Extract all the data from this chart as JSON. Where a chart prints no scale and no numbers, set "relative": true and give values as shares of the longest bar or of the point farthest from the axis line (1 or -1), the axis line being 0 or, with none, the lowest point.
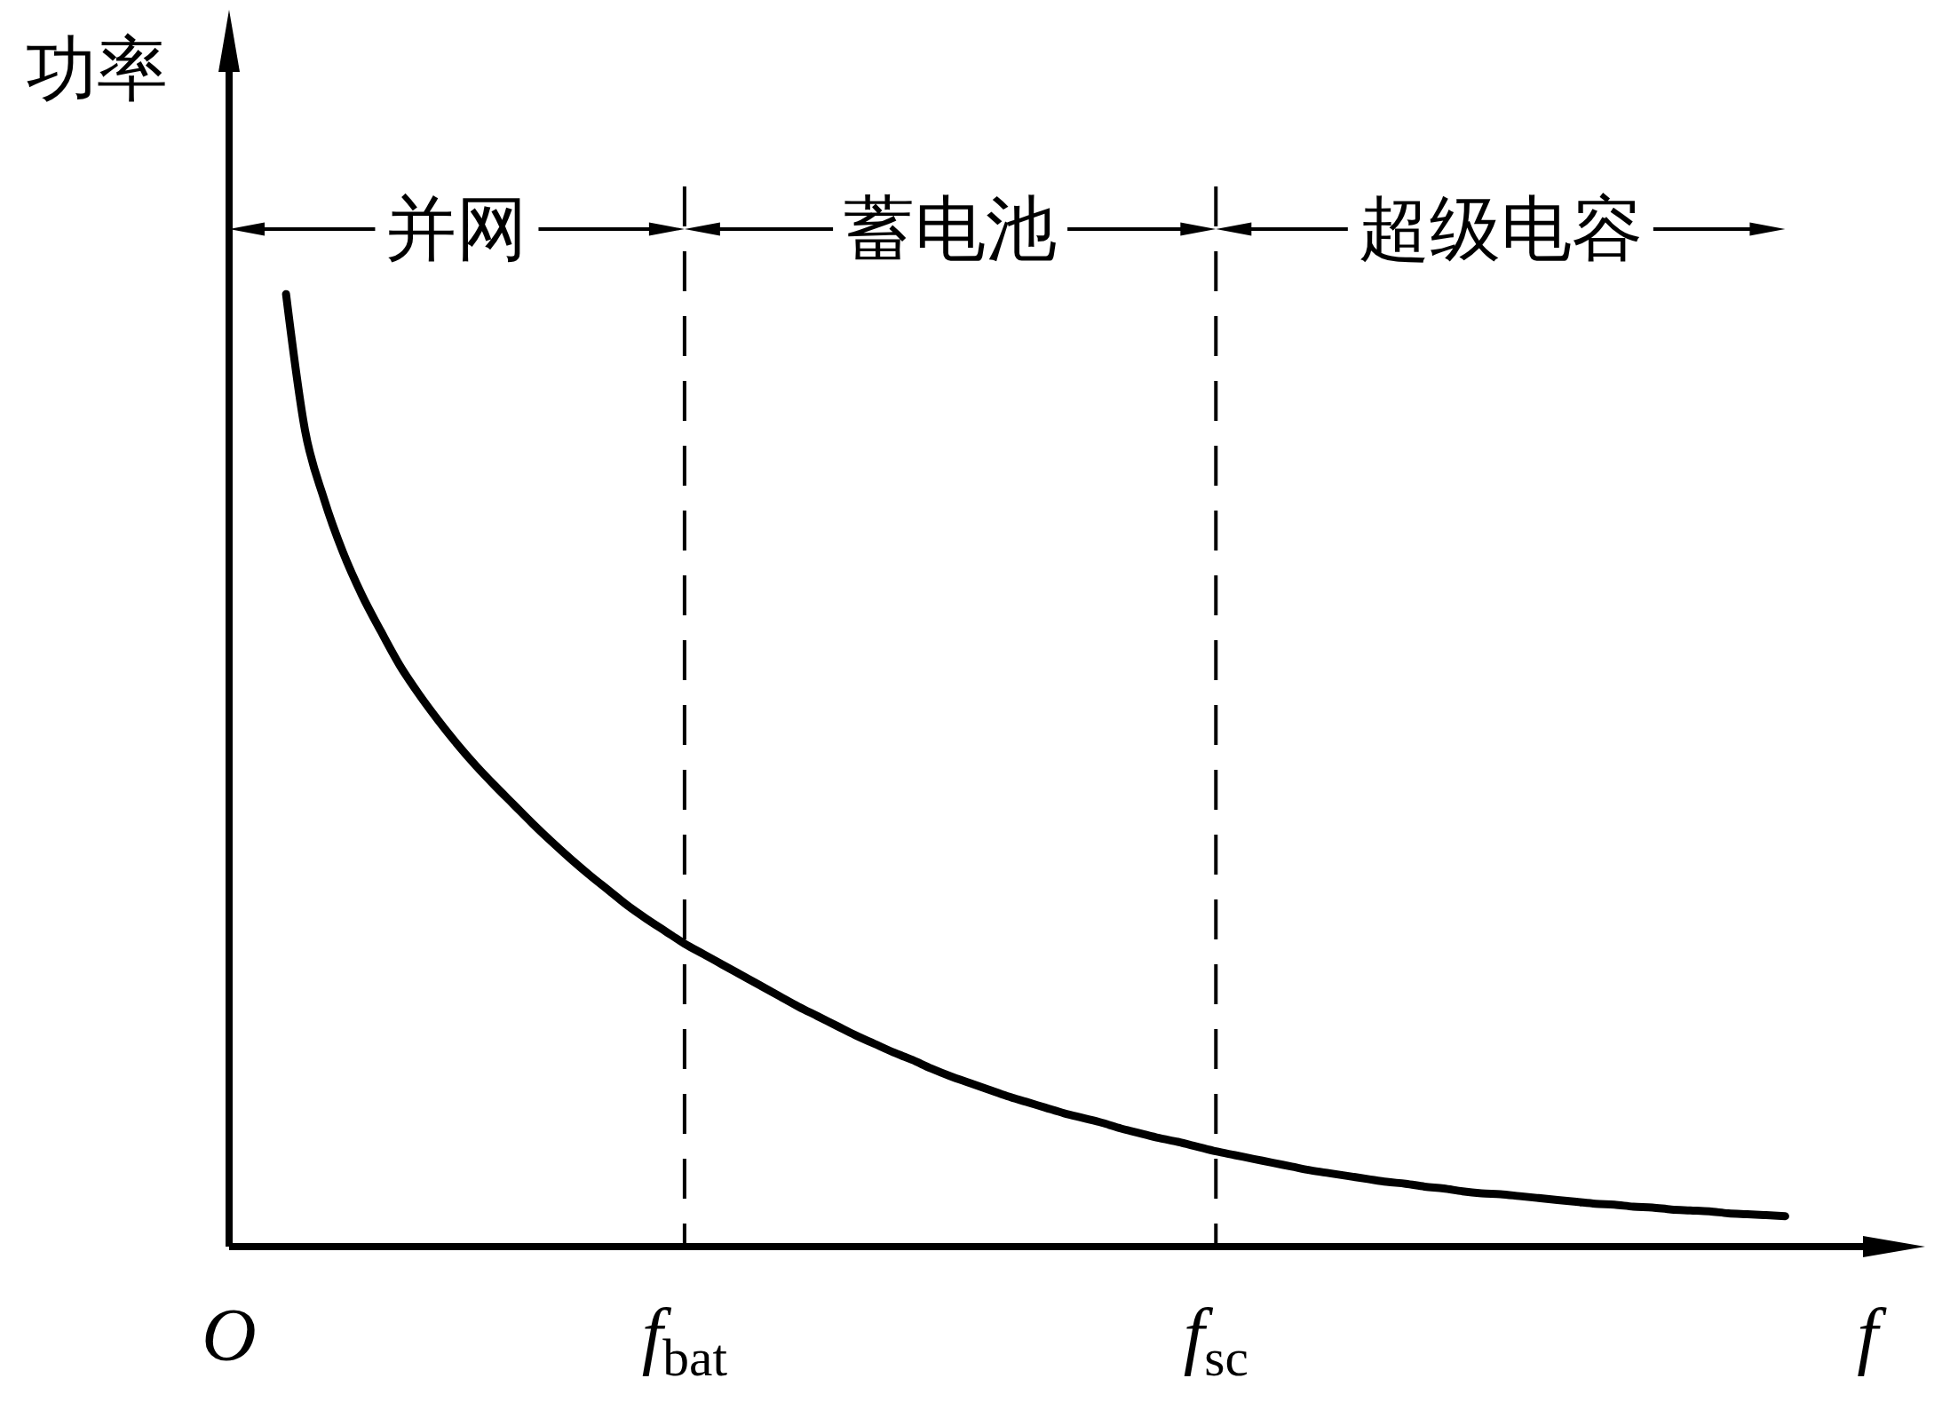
{
  "chart_data": {
    "type": "line",
    "ylabel": "功率",
    "xlabel": "f",
    "relative": true,
    "categories": [
      "O",
      null,
      null,
      null,
      null,
      null,
      null,
      null,
      null,
      null,
      null,
      null,
      null,
      null,
      null,
      null,
      null,
      null,
      null,
      null,
      null,
      null,
      null,
      null,
      "f$_{bat}$",
      null,
      null,
      null,
      null,
      null,
      null,
      null,
      null,
      null,
      null,
      null,
      null,
      null,
      null,
      null,
      null,
      null,
      null,
      null,
      null,
      null,
      null,
      null,
      null,
      null,
      null,
      null,
      "f$_{sc}$",
      null,
      null,
      null,
      null,
      null,
      null,
      null,
      null,
      null,
      null,
      null,
      null,
      null,
      null,
      null,
      null,
      null,
      null,
      null,
      null,
      null,
      null,
      null,
      null,
      null,
      null,
      null,
      null,
      null,
      null
    ],
    "values": [
      null,
      null,
      null,
      1.0,
      0.857,
      0.785,
      0.729,
      0.684,
      0.646,
      0.61,
      0.58,
      0.553,
      0.528,
      0.505,
      0.484,
      0.464,
      0.444,
      0.425,
      0.407,
      0.39,
      0.374,
      0.358,
      0.344,
      0.331,
      0.318,
      0.307,
      0.296,
      0.285,
      0.274,
      0.263,
      0.252,
      0.242,
      0.232,
      0.222,
      0.213,
      0.204,
      0.196,
      0.187,
      0.179,
      0.172,
      0.165,
      0.158,
      0.152,
      0.146,
      0.14,
      0.135,
      0.13,
      0.124,
      0.119,
      0.114,
      0.11,
      0.105,
      0.1,
      0.096,
      0.092,
      0.088,
      0.084,
      0.08,
      0.077,
      0.074,
      0.071,
      0.068,
      0.066,
      0.063,
      0.061,
      0.058,
      0.056,
      0.055,
      0.053,
      0.051,
      0.049,
      0.047,
      0.045,
      0.044,
      0.042,
      0.041,
      0.039,
      0.038,
      0.037,
      0.035,
      0.034,
      0.033,
      0.032
    ],
    "color": "#000000",
    "tick_labels": "x",
    "ref_lines": [
      {
        "axis": "x",
        "value": "f$_{bat}$",
        "color": "#000000",
        "line_style": "dashed"
      },
      {
        "axis": "x",
        "value": "f$_{sc}$",
        "color": "#000000",
        "line_style": "dashed"
      }
    ],
    "annotations": [
      "并网",
      "蓄电池",
      "超级电容"
    ],
    "grid": false,
    "legend": false,
    "marker": "none",
    "line_style": "solid"
  }
}
